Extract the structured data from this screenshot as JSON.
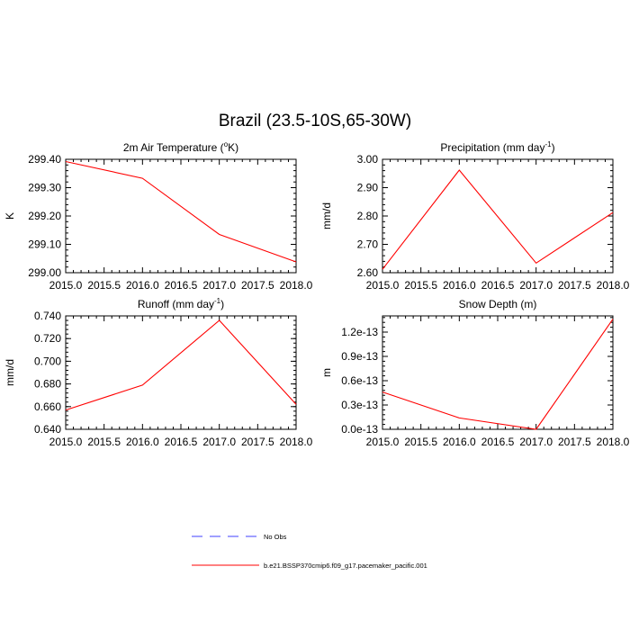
{
  "figure": {
    "title": "Brazil (23.5-10S,65-30W)"
  },
  "colors": {
    "model_line": "#ff0000",
    "obs_line": "#4040ff",
    "axis": "#000000"
  },
  "legend": {
    "placement": "bottom-center",
    "items": [
      {
        "label": "No Obs",
        "style": "dashed",
        "color": "#4040ff"
      },
      {
        "label": "b.e21.BSSP370cmip6.f09_g17.pacemaker_pacific.001",
        "style": "solid",
        "color": "#ff0000"
      }
    ]
  },
  "chart_data": [
    {
      "type": "line",
      "title": "2m Air Temperature (",
      "title_sup": "o",
      "title_end": "K)",
      "ylabel": "K",
      "x": [
        2015.0,
        2016.0,
        2017.0,
        2018.0
      ],
      "xlim": [
        2015.0,
        2018.0
      ],
      "xticks": [
        "2015.0",
        "2015.5",
        "2016.0",
        "2016.5",
        "2017.0",
        "2017.5",
        "2018.0"
      ],
      "ylim": [
        299.0,
        299.4
      ],
      "yticks": [
        "299.00",
        "299.10",
        "299.20",
        "299.30",
        "299.40"
      ],
      "series": [
        {
          "values": [
            299.392,
            299.333,
            299.135,
            299.038
          ]
        }
      ]
    },
    {
      "type": "line",
      "title": "Precipitation (mm day",
      "title_sup": "-1",
      "title_end": ")",
      "ylabel": "mm/d",
      "x": [
        2015.0,
        2016.0,
        2017.0,
        2018.0
      ],
      "xlim": [
        2015.0,
        2018.0
      ],
      "xticks": [
        "2015.0",
        "2015.5",
        "2016.0",
        "2016.5",
        "2017.0",
        "2017.5",
        "2018.0"
      ],
      "ylim": [
        2.6,
        3.0
      ],
      "yticks": [
        "2.60",
        "2.70",
        "2.80",
        "2.90",
        "3.00"
      ],
      "series": [
        {
          "values": [
            2.612,
            2.962,
            2.634,
            2.812
          ]
        }
      ]
    },
    {
      "type": "line",
      "title": "Runoff (mm day",
      "title_sup": "-1",
      "title_end": ")",
      "ylabel": "mm/d",
      "x": [
        2015.0,
        2016.0,
        2017.0,
        2018.0
      ],
      "xlim": [
        2015.0,
        2018.0
      ],
      "xticks": [
        "2015.0",
        "2015.5",
        "2016.0",
        "2016.5",
        "2017.0",
        "2017.5",
        "2018.0"
      ],
      "ylim": [
        0.64,
        0.74
      ],
      "yticks": [
        "0.640",
        "0.660",
        "0.680",
        "0.700",
        "0.720",
        "0.740"
      ],
      "series": [
        {
          "values": [
            0.657,
            0.679,
            0.736,
            0.662
          ]
        }
      ]
    },
    {
      "type": "line",
      "title": "Snow Depth (m)",
      "title_sup": "",
      "title_end": "",
      "ylabel": "m",
      "x": [
        2015.0,
        2016.0,
        2017.0,
        2018.0
      ],
      "xlim": [
        2015.0,
        2018.0
      ],
      "xticks": [
        "2015.0",
        "2015.5",
        "2016.0",
        "2016.5",
        "2017.0",
        "2017.5",
        "2018.0"
      ],
      "ylim": [
        0.0,
        1.4e-13
      ],
      "yticks": [
        "0.0e-13",
        "0.3e-13",
        "0.6e-13",
        "0.9e-13",
        "1.2e-13"
      ],
      "ytick_values": [
        0.0,
        3e-14,
        6e-14,
        9e-14,
        1.2e-13
      ],
      "series": [
        {
          "values": [
            4.6e-14,
            1.4e-14,
            0.0,
            1.36e-13
          ]
        }
      ]
    }
  ]
}
